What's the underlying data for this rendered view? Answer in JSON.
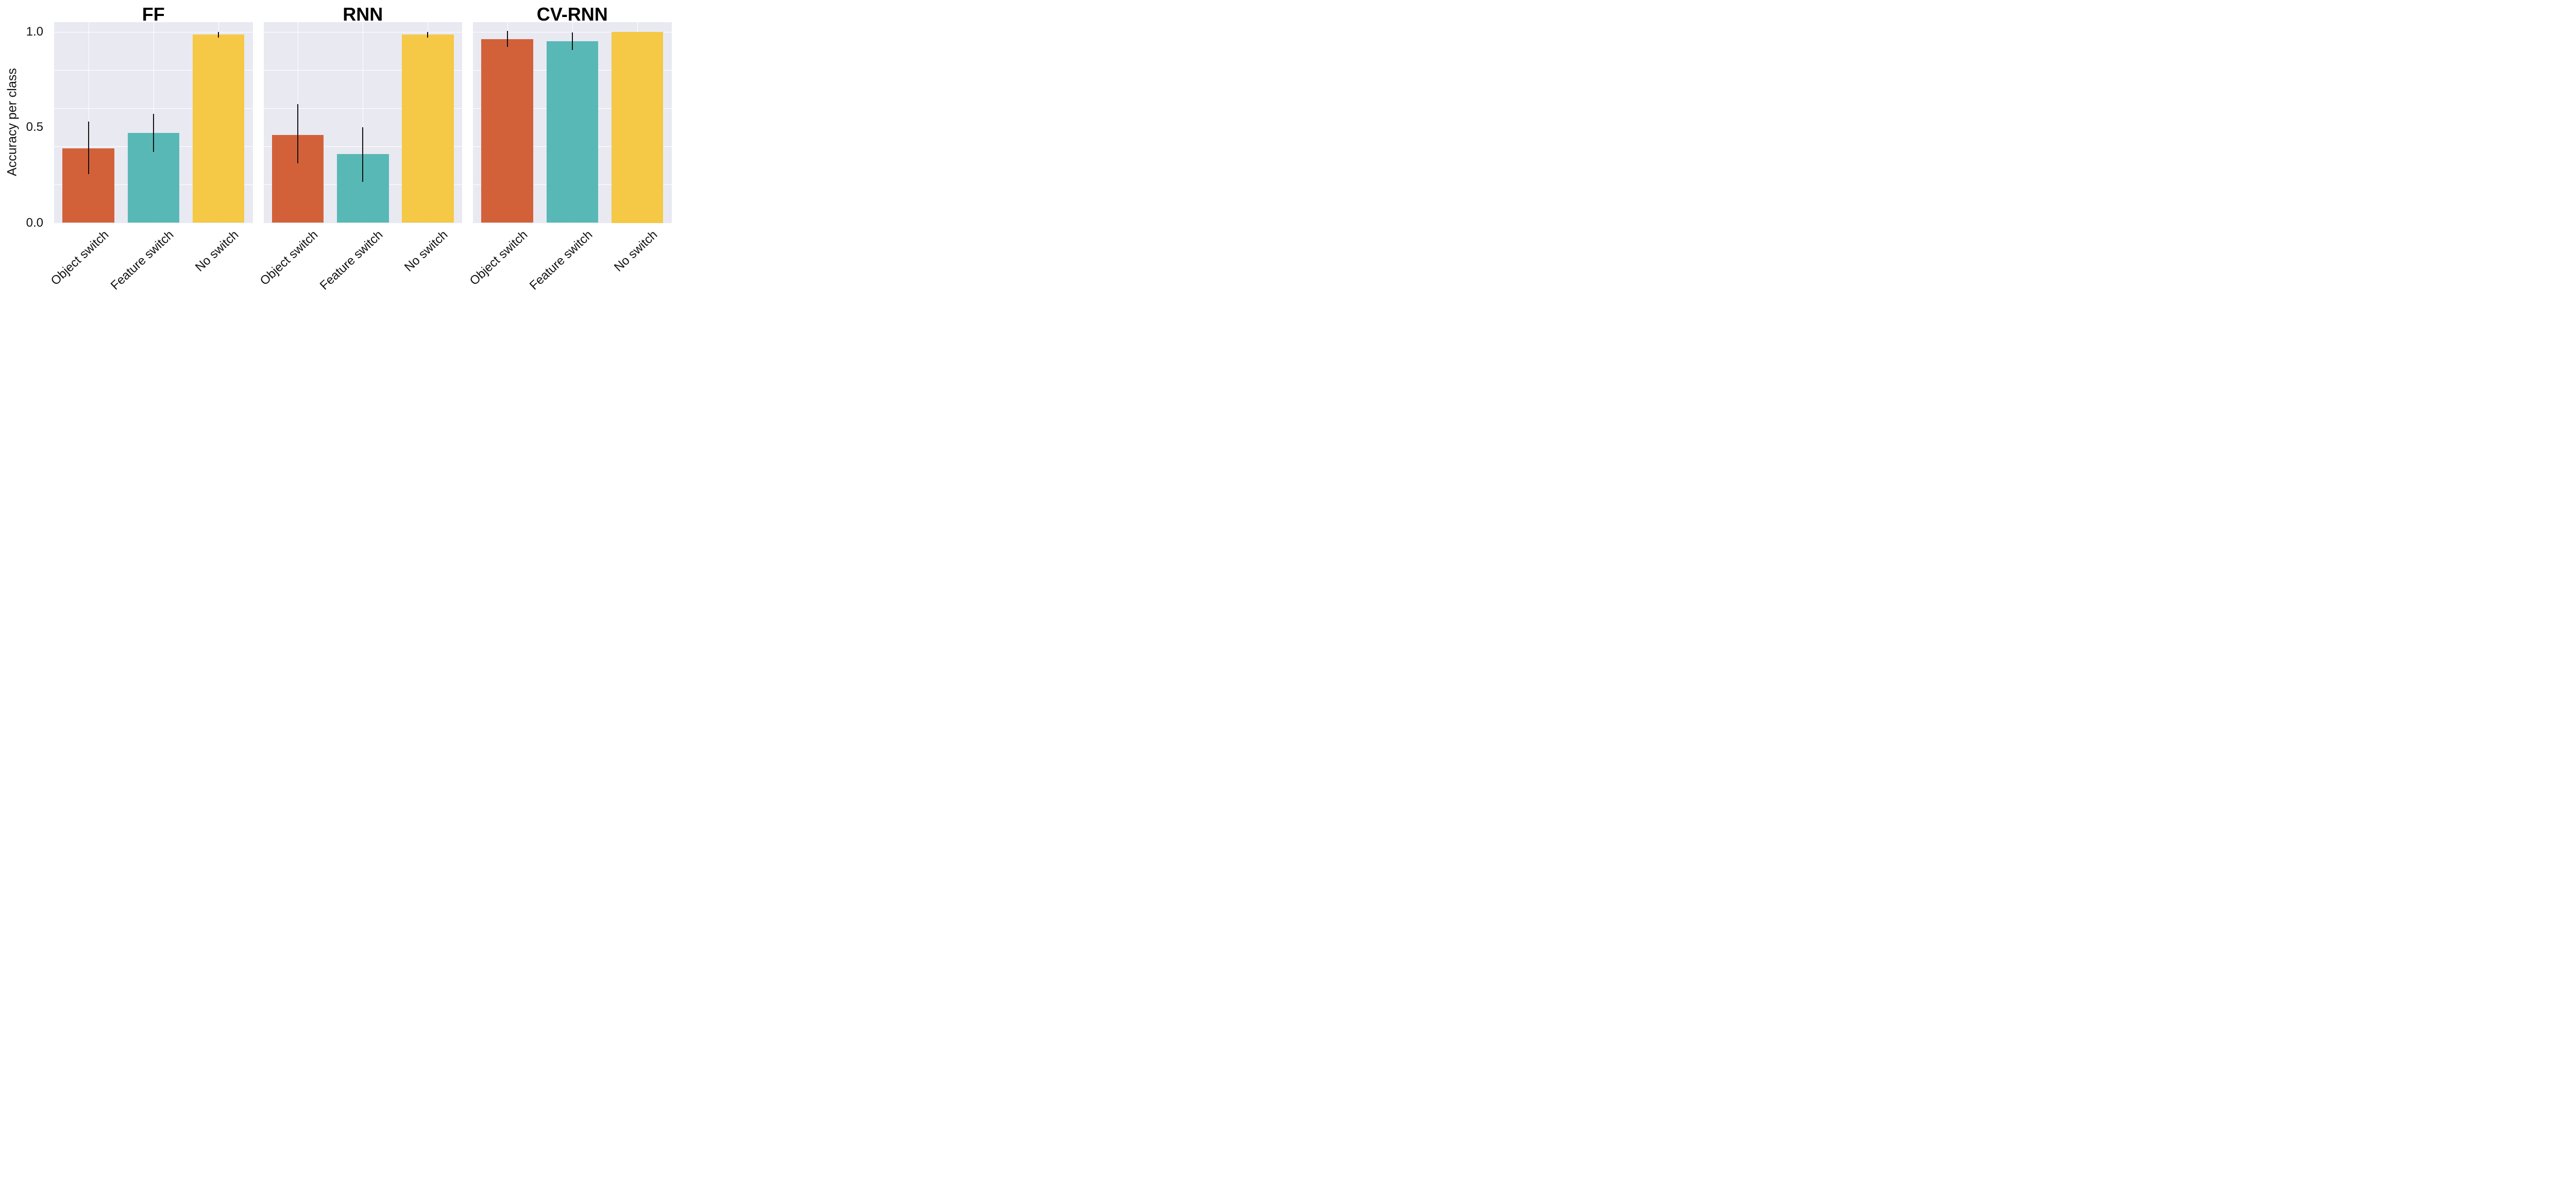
{
  "chart_data": {
    "type": "bar",
    "title": "",
    "ylabel": "Accuracy per class",
    "categories": [
      "Object switch",
      "Feature switch",
      "No switch"
    ],
    "ytick_labels": [
      "0.0",
      "0.5",
      "1.0"
    ],
    "ytick_values": [
      0.0,
      0.5,
      1.0
    ],
    "ylim": [
      0,
      1.052
    ],
    "grid_interval": 0.2,
    "grid_on": true,
    "legend_position": "none",
    "plot_bg_color": "#e9e9f2",
    "grid_color": "#ffffff",
    "error_bar_color": "#111111",
    "bar_colors": [
      "#d2613a",
      "#58b8b6",
      "#f5c845"
    ],
    "panels": [
      {
        "title": "FF",
        "values": [
          0.39,
          0.47,
          0.985
        ],
        "err_lo": [
          0.255,
          0.37,
          0.97
        ],
        "err_hi": [
          0.53,
          0.57,
          1.0
        ]
      },
      {
        "title": "RNN",
        "values": [
          0.46,
          0.36,
          0.985
        ],
        "err_lo": [
          0.31,
          0.215,
          0.97
        ],
        "err_hi": [
          0.62,
          0.5,
          1.0
        ]
      },
      {
        "title": "CV-RNN",
        "values": [
          0.96,
          0.95,
          1.0
        ],
        "err_lo": [
          0.92,
          0.905,
          1.0
        ],
        "err_hi": [
          1.005,
          0.995,
          1.0
        ]
      }
    ]
  }
}
